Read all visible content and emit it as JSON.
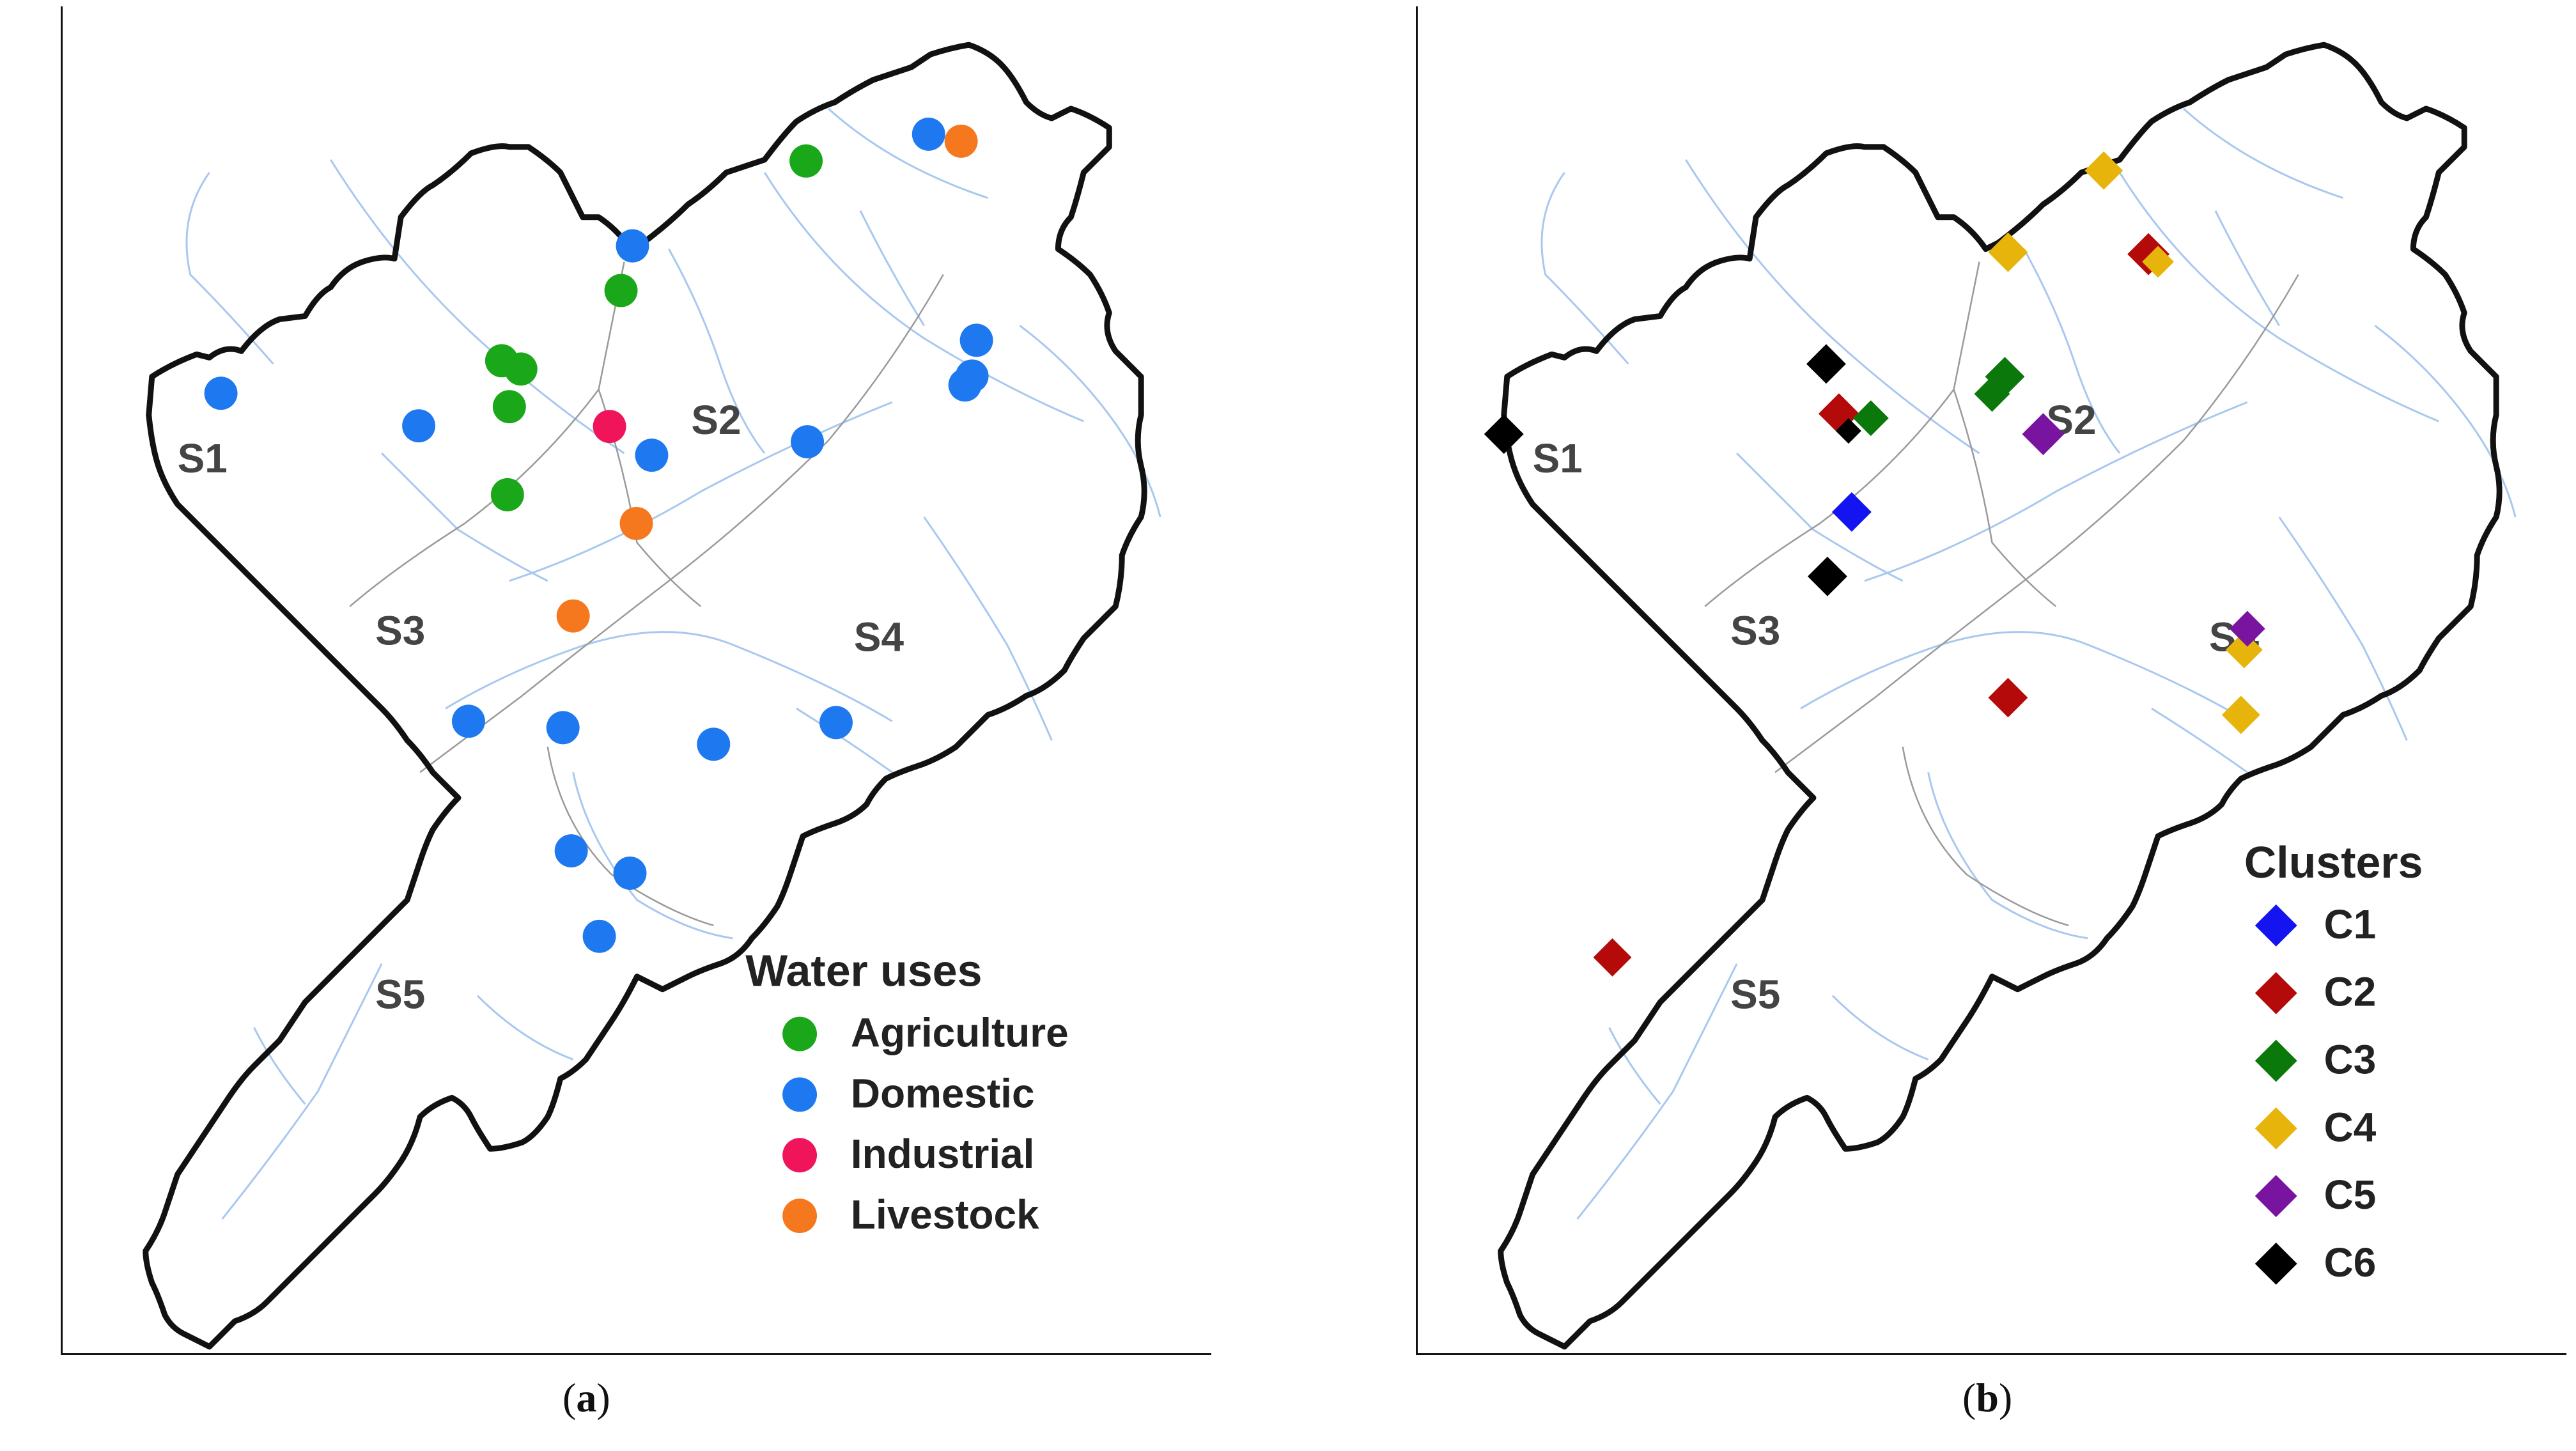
{
  "panels": [
    {
      "caption": "a",
      "legend_title": "Water uses",
      "subbasins": [
        "S1",
        "S2",
        "S3",
        "S4",
        "S5"
      ],
      "categories": [
        {
          "name": "Agriculture",
          "color": "#1aa81a"
        },
        {
          "name": "Domestic",
          "color": "#1e78f0"
        },
        {
          "name": "Industrial",
          "color": "#f0145a"
        },
        {
          "name": "Livestock",
          "color": "#f5781e"
        }
      ]
    },
    {
      "caption": "b",
      "legend_title": "Clusters",
      "subbasins": [
        "S1",
        "S2",
        "S3",
        "S4",
        "S5"
      ],
      "categories": [
        {
          "name": "C1",
          "color": "#1414f0"
        },
        {
          "name": "C2",
          "color": "#b40a0a"
        },
        {
          "name": "C3",
          "color": "#0a780a"
        },
        {
          "name": "C4",
          "color": "#e6b40a"
        },
        {
          "name": "C5",
          "color": "#7814a0"
        },
        {
          "name": "C6",
          "color": "#000000"
        }
      ]
    }
  ]
}
